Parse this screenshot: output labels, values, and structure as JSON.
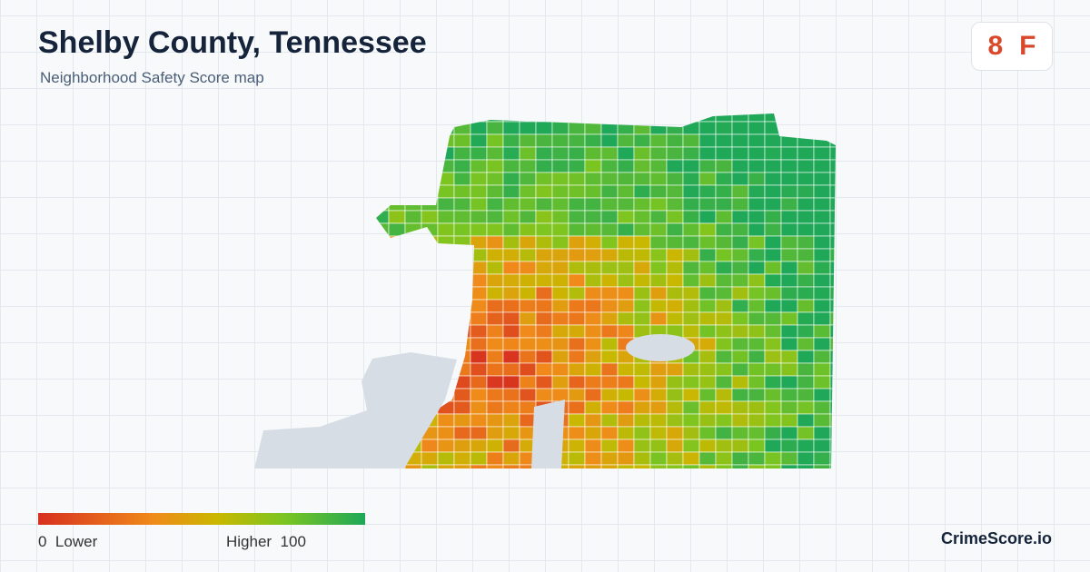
{
  "header": {
    "title": "Shelby County, Tennessee",
    "subtitle": "Neighborhood Safety Score map"
  },
  "badge": {
    "score": 8,
    "grade": "F"
  },
  "legend": {
    "min": 0,
    "min_label": "Lower",
    "max_label": "Higher",
    "max": 100
  },
  "footer": {
    "brand": "CrimeScore.io"
  }
}
